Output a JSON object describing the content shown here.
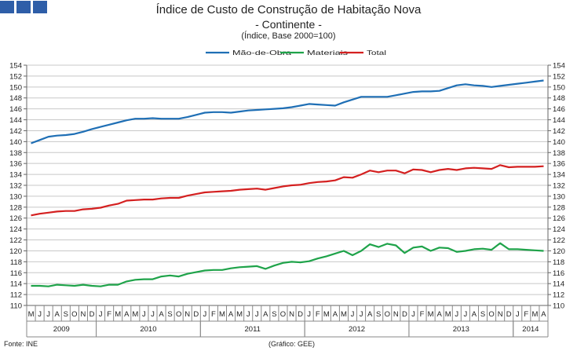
{
  "header": {
    "title": "Índice de Custo de Construção de Habitação Nova",
    "subtitle": "- Continente -",
    "note": "(Índice,  Base 2000=100)"
  },
  "footer": {
    "source": "Fonte:  INE",
    "graph_credit": "(Gráfico:  GEE)"
  },
  "colors": {
    "brand": "#2e5ea8",
    "mao_de_obra": "#1f6fb5",
    "materiais": "#1fa34a",
    "total": "#d42020"
  },
  "chart_data": {
    "type": "line",
    "ylim": [
      110,
      154
    ],
    "yticks": [
      110,
      112,
      114,
      116,
      118,
      120,
      122,
      124,
      126,
      128,
      130,
      132,
      134,
      136,
      138,
      140,
      142,
      144,
      146,
      148,
      150,
      152,
      154
    ],
    "grid": true,
    "legend": "top",
    "x": [
      "M",
      "J",
      "J",
      "A",
      "S",
      "O",
      "N",
      "D",
      "J",
      "F",
      "M",
      "A",
      "M",
      "J",
      "J",
      "A",
      "S",
      "O",
      "N",
      "D",
      "J",
      "F",
      "M",
      "A",
      "M",
      "J",
      "J",
      "A",
      "S",
      "O",
      "N",
      "D",
      "J",
      "F",
      "M",
      "A",
      "M",
      "J",
      "J",
      "A",
      "S",
      "O",
      "N",
      "D",
      "J",
      "F",
      "M",
      "A",
      "M",
      "J",
      "J",
      "A",
      "S",
      "O",
      "N",
      "D",
      "J",
      "F",
      "M",
      "A"
    ],
    "years": [
      {
        "label": "2009",
        "start": 0,
        "end": 8
      },
      {
        "label": "2010",
        "start": 8,
        "end": 20
      },
      {
        "label": "2011",
        "start": 20,
        "end": 32
      },
      {
        "label": "2012",
        "start": 32,
        "end": 44
      },
      {
        "label": "2013",
        "start": 44,
        "end": 56
      },
      {
        "label": "2014",
        "start": 56,
        "end": 60
      }
    ],
    "series": [
      {
        "name": "Mão-de-Obra",
        "color": "#1f6fb5",
        "values": [
          139.7,
          140.3,
          140.9,
          141.1,
          141.2,
          141.4,
          141.8,
          142.3,
          142.7,
          143.1,
          143.5,
          143.9,
          144.2,
          144.2,
          144.3,
          144.2,
          144.2,
          144.2,
          144.5,
          144.9,
          145.3,
          145.4,
          145.4,
          145.3,
          145.5,
          145.7,
          145.8,
          145.9,
          146.0,
          146.1,
          146.3,
          146.6,
          146.9,
          146.8,
          146.7,
          146.6,
          147.2,
          147.7,
          148.2,
          148.2,
          148.2,
          148.2,
          148.5,
          148.8,
          149.1,
          149.2,
          149.2,
          149.3,
          149.8,
          150.3,
          150.5,
          150.3,
          150.2,
          150.0,
          150.2,
          150.4,
          150.6,
          150.8,
          151.0,
          151.2
        ]
      },
      {
        "name": "Materiais",
        "color": "#1fa34a",
        "values": [
          113.6,
          113.6,
          113.5,
          113.8,
          113.7,
          113.6,
          113.8,
          113.6,
          113.5,
          113.8,
          113.8,
          114.4,
          114.7,
          114.8,
          114.8,
          115.3,
          115.5,
          115.3,
          115.8,
          116.1,
          116.4,
          116.5,
          116.5,
          116.8,
          117.0,
          117.1,
          117.2,
          116.7,
          117.3,
          117.8,
          118.0,
          117.9,
          118.1,
          118.6,
          119.0,
          119.5,
          120.0,
          119.2,
          120.0,
          121.2,
          120.7,
          121.3,
          121.0,
          119.6,
          120.6,
          120.8,
          120.0,
          120.6,
          120.5,
          119.8,
          120.0,
          120.3,
          120.4,
          120.2,
          121.4,
          120.3,
          120.3,
          120.2,
          120.1,
          120.0
        ]
      },
      {
        "name": "Total",
        "color": "#d42020",
        "values": [
          126.5,
          126.8,
          127.0,
          127.2,
          127.3,
          127.3,
          127.6,
          127.7,
          127.9,
          128.3,
          128.6,
          129.2,
          129.3,
          129.4,
          129.4,
          129.6,
          129.7,
          129.7,
          130.1,
          130.4,
          130.7,
          130.8,
          130.9,
          131.0,
          131.2,
          131.3,
          131.4,
          131.2,
          131.5,
          131.8,
          132.0,
          132.1,
          132.4,
          132.6,
          132.7,
          132.9,
          133.5,
          133.4,
          134.0,
          134.7,
          134.4,
          134.7,
          134.7,
          134.2,
          134.9,
          134.8,
          134.4,
          134.8,
          135.0,
          134.8,
          135.1,
          135.2,
          135.1,
          135.0,
          135.7,
          135.3,
          135.4,
          135.4,
          135.4,
          135.5
        ]
      }
    ]
  }
}
